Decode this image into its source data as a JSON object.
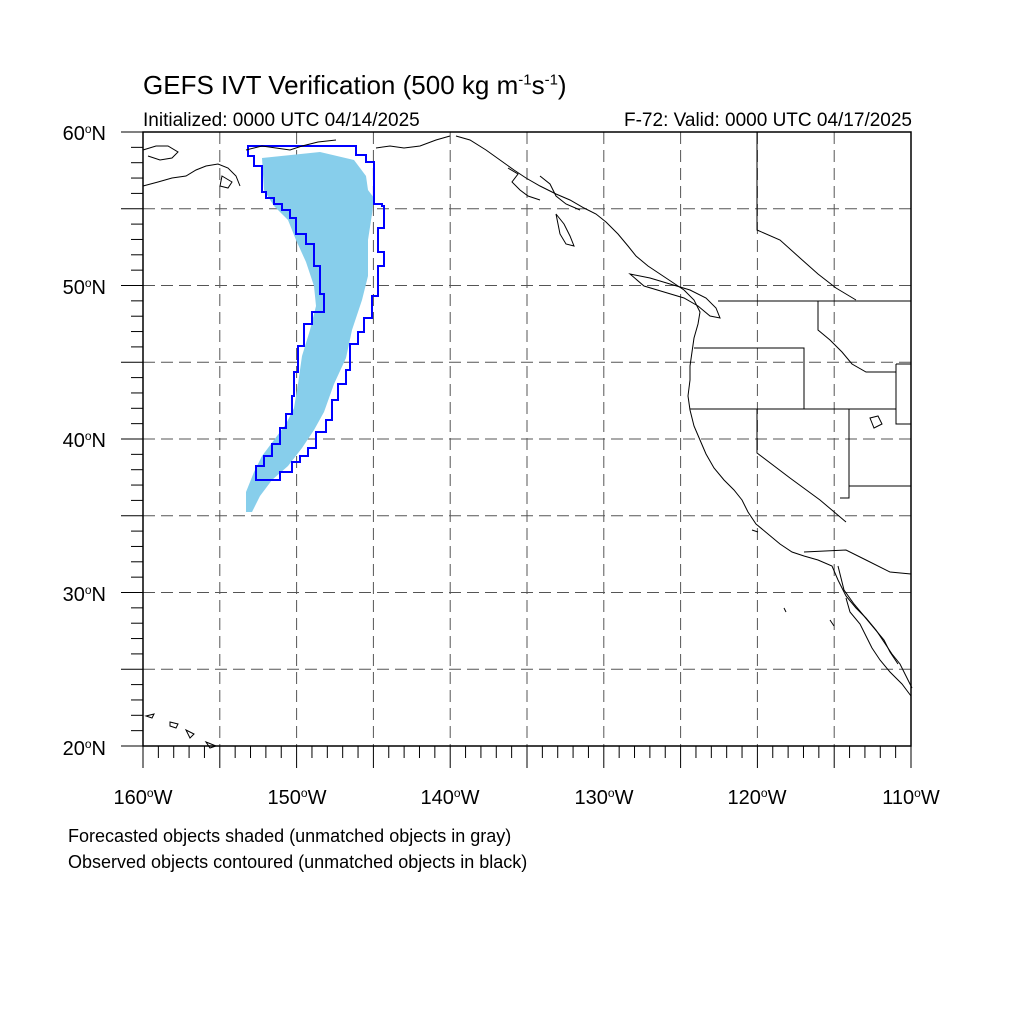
{
  "title": {
    "text": "GEFS IVT Verification (500 kg m",
    "sup1": "-1",
    "mid": "s",
    "sup2": "-1",
    "end": ")"
  },
  "subtitle_left": "Initialized: 0000 UTC 04/14/2025",
  "subtitle_right": "F-72: Valid: 0000 UTC 04/17/2025",
  "map": {
    "lon_range": [
      -160,
      -110
    ],
    "lat_range": [
      20,
      60
    ],
    "grid": "dashed",
    "lat_labels": [
      {
        "lat": 60,
        "num": "60",
        "hemi": "N"
      },
      {
        "lat": 50,
        "num": "50",
        "hemi": "N"
      },
      {
        "lat": 40,
        "num": "40",
        "hemi": "N"
      },
      {
        "lat": 30,
        "num": "30",
        "hemi": "N"
      },
      {
        "lat": 20,
        "num": "20",
        "hemi": "N"
      }
    ],
    "lon_labels": [
      {
        "lon": -160,
        "num": "160",
        "hemi": "W"
      },
      {
        "lon": -150,
        "num": "150",
        "hemi": "W"
      },
      {
        "lon": -140,
        "num": "140",
        "hemi": "W"
      },
      {
        "lon": -130,
        "num": "130",
        "hemi": "W"
      },
      {
        "lon": -120,
        "num": "120",
        "hemi": "W"
      },
      {
        "lon": -110,
        "num": "110",
        "hemi": "W"
      }
    ],
    "forecast_fill_color": "#87ceeb",
    "observed_contour_color": "#0000ff",
    "coast_color": "#000000"
  },
  "notes": {
    "line1": "Forecasted objects shaded (unmatched objects in gray)",
    "line2": "Observed objects contoured (unmatched objects in black)"
  }
}
